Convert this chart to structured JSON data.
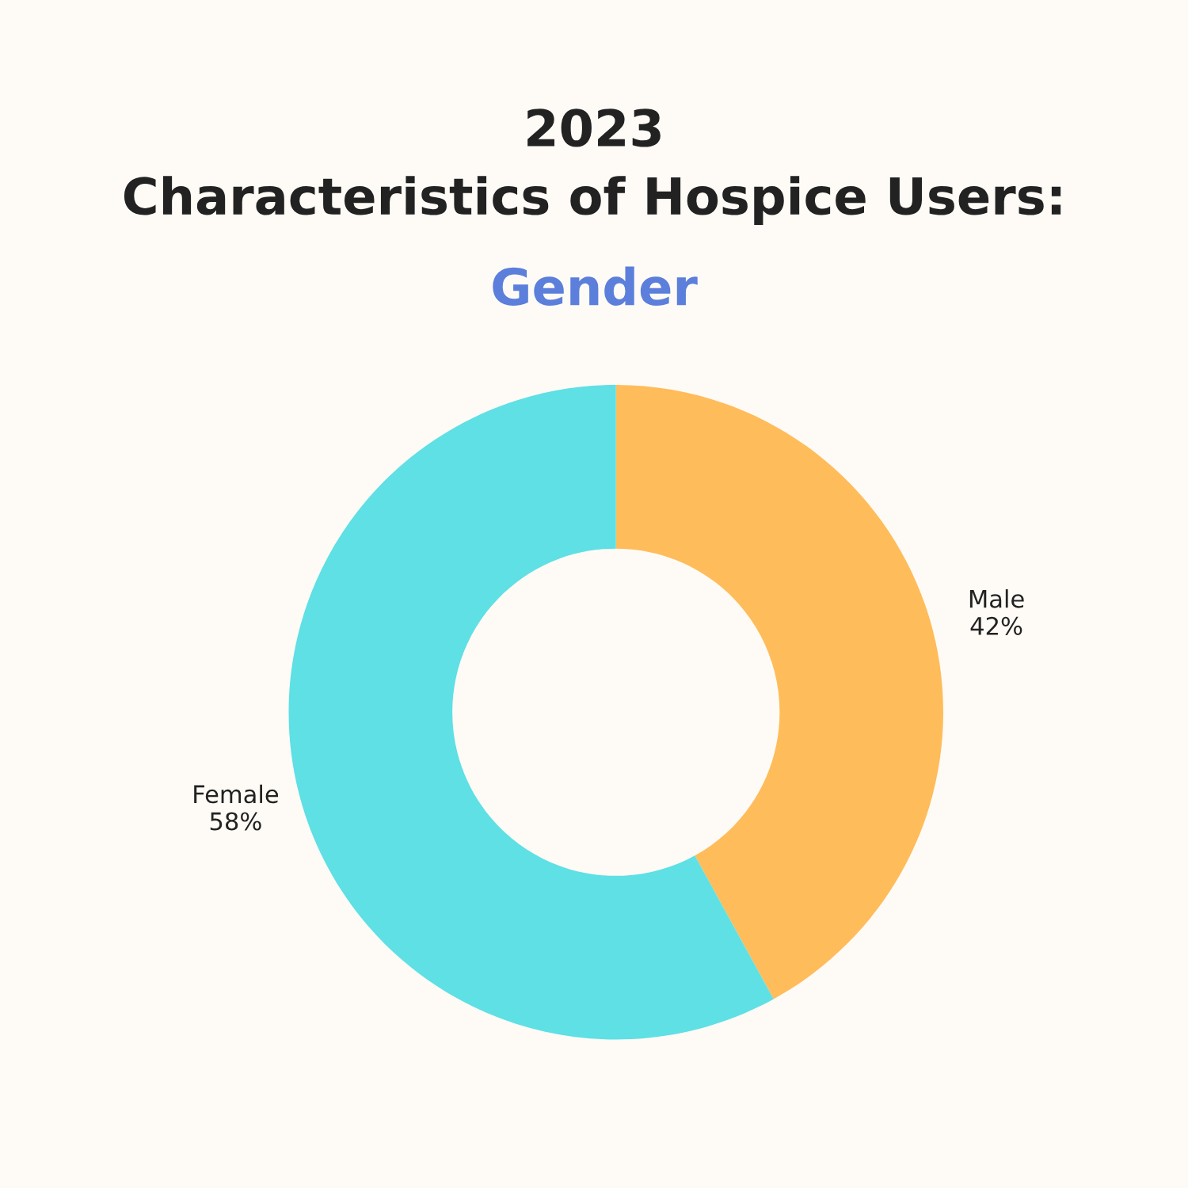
{
  "chart_data": {
    "type": "donut",
    "title": "2023\nCharacteristics of Hospice Users:",
    "subtitle": "Gender",
    "categories": [
      "Male",
      "Female"
    ],
    "values": [
      42,
      58
    ],
    "colors": [
      "#ffbc5a",
      "#5ee0e4"
    ],
    "value_labels": [
      "42%",
      "58%"
    ]
  }
}
